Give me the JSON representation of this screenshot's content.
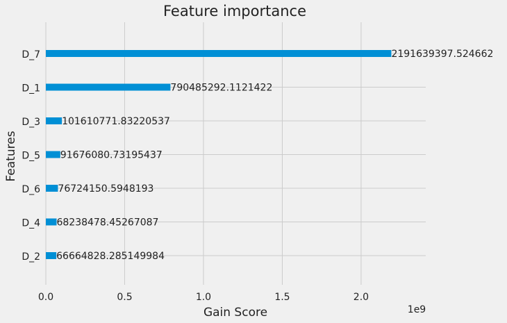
{
  "chart_data": {
    "type": "barh",
    "title": "Feature importance",
    "xlabel": "Gain Score",
    "ylabel": "Features",
    "x_offset_label": "1e9",
    "categories": [
      "D_7",
      "D_1",
      "D_3",
      "D_5",
      "D_6",
      "D_4",
      "D_2"
    ],
    "values": [
      2191639397.524662,
      790485292.1121422,
      101610771.83220537,
      91676080.73195437,
      76724150.5948193,
      68238478.45267087,
      66664828.285149984
    ],
    "color": "#008fd5",
    "xlim": [
      0,
      2410000000
    ],
    "xticks": [
      {
        "value": 0,
        "label": "0.0"
      },
      {
        "value": 500000000,
        "label": "0.5"
      },
      {
        "value": 1000000000,
        "label": "1.0"
      },
      {
        "value": 1500000000,
        "label": "1.5"
      },
      {
        "value": 2000000000,
        "label": "2.0"
      }
    ],
    "grid": true
  }
}
